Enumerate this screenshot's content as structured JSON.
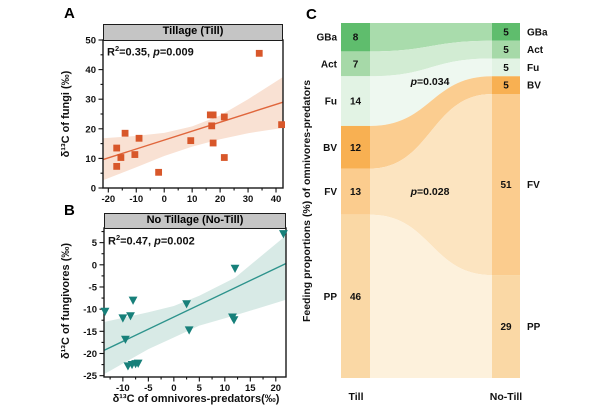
{
  "figure_title": "Multi-panel figure: tillage scatter regressions and feeding-proportion alluvial plot",
  "chart_data": [
    {
      "id": "A",
      "type": "scatter",
      "panel_label": "A",
      "title": "Tillage (Till)",
      "r2": "0.35",
      "p": "0.009",
      "ylabel": "δ¹³C of fungi (‰)",
      "xlim": [
        -21.9,
        42.5
      ],
      "ylim": [
        0,
        50
      ],
      "x_major_ticks": [
        -20,
        -10,
        0,
        10,
        20,
        30,
        40
      ],
      "y_major_ticks": [
        0,
        10,
        20,
        30,
        40,
        50
      ],
      "minor_step": 5,
      "marker": "square",
      "colors": {
        "marker": "#d8572a",
        "line": "#e0663c",
        "band": "#f9e1d3",
        "header_bg": "#c5c5c5"
      },
      "points": [
        [
          -17,
          13.5
        ],
        [
          -17,
          7.3
        ],
        [
          -15.5,
          10.3
        ],
        [
          -14,
          18.5
        ],
        [
          -10.5,
          11.3
        ],
        [
          -9,
          16.8
        ],
        [
          -2,
          5.3
        ],
        [
          9.5,
          16
        ],
        [
          16.5,
          24.7
        ],
        [
          17.5,
          24.7
        ],
        [
          17,
          21
        ],
        [
          17.5,
          15.2
        ],
        [
          21.5,
          24
        ],
        [
          21.5,
          10.3
        ],
        [
          34,
          45.5
        ],
        [
          42,
          21.4
        ]
      ],
      "regression": {
        "x1": -21.9,
        "y1": 9.6,
        "x2": 42.5,
        "y2": 29
      },
      "band_upper": [
        [
          -21.9,
          16.8
        ],
        [
          -10,
          17.6
        ],
        [
          0,
          18.6
        ],
        [
          10,
          20.8
        ],
        [
          20,
          24.5
        ],
        [
          30,
          30
        ],
        [
          42.5,
          37.5
        ]
      ],
      "band_lower": [
        [
          -21.9,
          2.6
        ],
        [
          -10,
          7
        ],
        [
          0,
          10.8
        ],
        [
          10,
          14
        ],
        [
          20,
          16.5
        ],
        [
          30,
          18.5
        ],
        [
          42.5,
          20.3
        ]
      ]
    },
    {
      "id": "B",
      "type": "scatter",
      "panel_label": "B",
      "title": "No Tillage (No-Till)",
      "r2": "0.47",
      "p": "0.002",
      "xlabel": "δ¹³C of omnivores-predators(‰)",
      "ylabel": "δ¹³C of fungivores (‰)",
      "xlim": [
        -13.7,
        22
      ],
      "ylim": [
        -25.3,
        8.3
      ],
      "x_major_ticks": [
        -10,
        -5,
        0,
        5,
        10,
        15,
        20
      ],
      "y_major_ticks": [
        -25,
        -20,
        -15,
        -10,
        -5,
        0,
        5
      ],
      "minor_step": 2.5,
      "marker": "triangle-down",
      "colors": {
        "marker": "#17807a",
        "line": "#2d938c",
        "band": "#d8eae6",
        "header_bg": "#c5c5c5"
      },
      "points": [
        [
          -13.5,
          -10.5
        ],
        [
          -10,
          -12
        ],
        [
          -9.5,
          -16.8
        ],
        [
          -8.5,
          -11.5
        ],
        [
          -8,
          -8
        ],
        [
          -9,
          -22.8
        ],
        [
          -8.2,
          -22.5
        ],
        [
          -7.5,
          -22.3
        ],
        [
          -7,
          -22.2
        ],
        [
          2.5,
          -8.8
        ],
        [
          3,
          -14.7
        ],
        [
          11.5,
          -11.8
        ],
        [
          11.8,
          -12.4
        ],
        [
          12,
          -0.8
        ],
        [
          21.5,
          7
        ]
      ],
      "regression": {
        "x1": -13.7,
        "y1": -19.3,
        "x2": 22,
        "y2": 0.3
      },
      "band_upper": [
        [
          -13.7,
          -12.9
        ],
        [
          -5,
          -10.7
        ],
        [
          0,
          -9.3
        ],
        [
          5,
          -7
        ],
        [
          12,
          -2.9
        ],
        [
          22,
          6.6
        ]
      ],
      "band_lower": [
        [
          -13.7,
          -24.7
        ],
        [
          -5,
          -19
        ],
        [
          0,
          -16.4
        ],
        [
          5,
          -13.7
        ],
        [
          12,
          -11.4
        ],
        [
          22,
          -7.9
        ]
      ]
    },
    {
      "id": "C",
      "type": "alluvial",
      "panel_label": "C",
      "ylabel": "Feeding proportions (%) of omnivores-predators",
      "left_title": "Till",
      "right_title": "No-Till",
      "categories": [
        "GBa",
        "Act",
        "Fu",
        "BV",
        "FV",
        "PP"
      ],
      "left_values": [
        8,
        7,
        14,
        12,
        13,
        46
      ],
      "right_values": [
        5,
        5,
        5,
        5,
        51,
        29
      ],
      "node_colors": [
        "#5fbd6d",
        "#a6d9a8",
        "#e2f3e4",
        "#f8b052",
        "#fbcc8e",
        "#fad8a5"
      ],
      "flow_colors": [
        "#a9dcac",
        "#d2ecd3",
        "#eef8f0",
        "#fbcd90",
        "#fce4c0",
        "#fdf1dc"
      ],
      "annotations": [
        {
          "p": "0.034"
        },
        {
          "p": "0.028"
        }
      ]
    }
  ]
}
